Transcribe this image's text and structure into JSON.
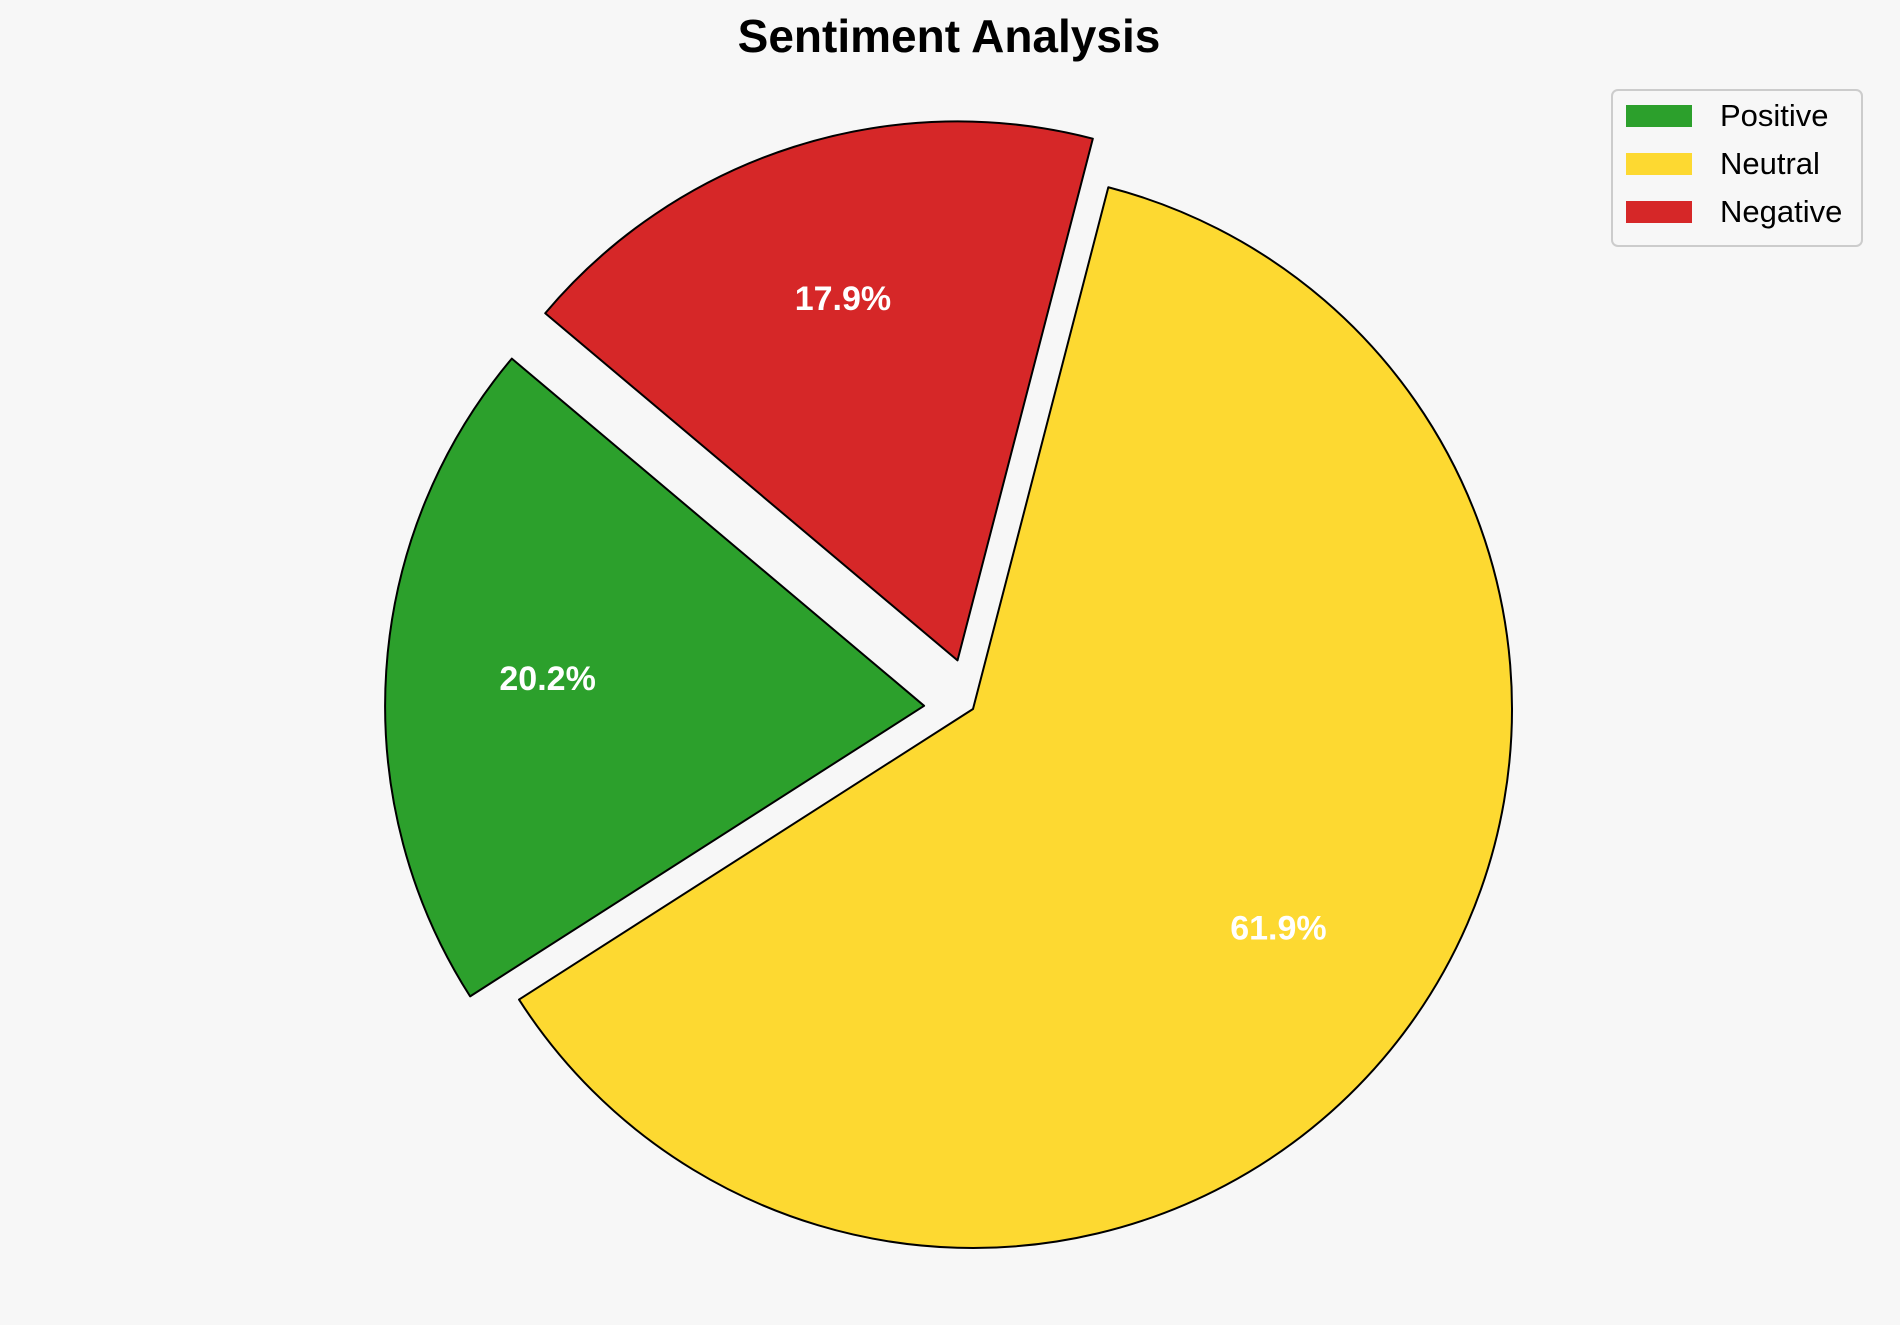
{
  "chart_data": {
    "type": "pie",
    "title": "Sentiment Analysis",
    "categories": [
      "Positive",
      "Neutral",
      "Negative"
    ],
    "values": [
      20.2,
      61.9,
      17.9
    ],
    "value_labels": [
      "20.2%",
      "61.9%",
      "17.9%"
    ],
    "colors": [
      "#2ca02c",
      "#fdd931",
      "#d62728"
    ],
    "legend": "upper right"
  }
}
